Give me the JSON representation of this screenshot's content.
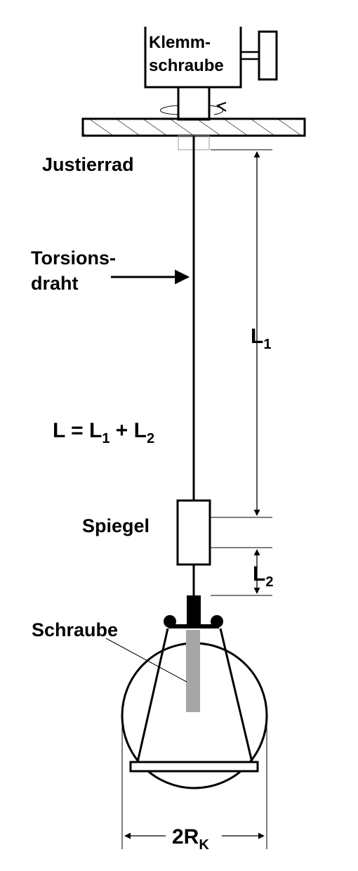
{
  "labels": {
    "clamp_screw_line1": "Klemm-",
    "clamp_screw_line2": "schraube",
    "adjust_wheel": "Justierrad",
    "torsion_wire_line1": "Torsions-",
    "torsion_wire_line2": "draht",
    "length_formula": {
      "lhs": "L = L",
      "sub1": "1",
      "plus": " + L",
      "sub2": "2"
    },
    "length_upper": {
      "main": "L",
      "sub": "1"
    },
    "mirror": "Spiegel",
    "length_lower": {
      "main": "L",
      "sub": "2"
    },
    "screw": "Schraube",
    "diameter": {
      "main": "2R",
      "sub": "K"
    }
  },
  "colors": {
    "ink": "#000000",
    "screw_gray": "#a6a6a6",
    "background": "#ffffff"
  }
}
